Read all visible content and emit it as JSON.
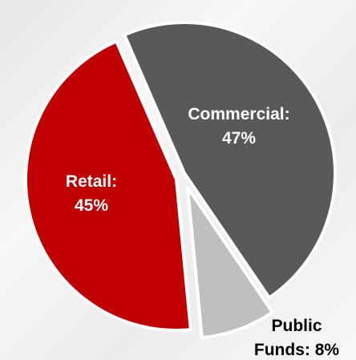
{
  "chart_data": {
    "type": "pie",
    "slices": [
      {
        "category": "Commercial",
        "label_lines": [
          "Commercial:",
          "47%"
        ],
        "value": 47,
        "color": "#595959",
        "label_color": "#ffffff"
      },
      {
        "category": "Public Funds",
        "label_lines": [
          "Public",
          "Funds: 8%"
        ],
        "value": 8,
        "color": "#bfbfbf",
        "label_color": "#000000"
      },
      {
        "category": "Retail",
        "label_lines": [
          "Retail:",
          "45%"
        ],
        "value": 45,
        "color": "#c00000",
        "label_color": "#ffffff"
      }
    ],
    "legend": "none",
    "label_style": "category and percent inside slices, Public Funds label outside bottom-right",
    "border_color": "#ffffff"
  }
}
